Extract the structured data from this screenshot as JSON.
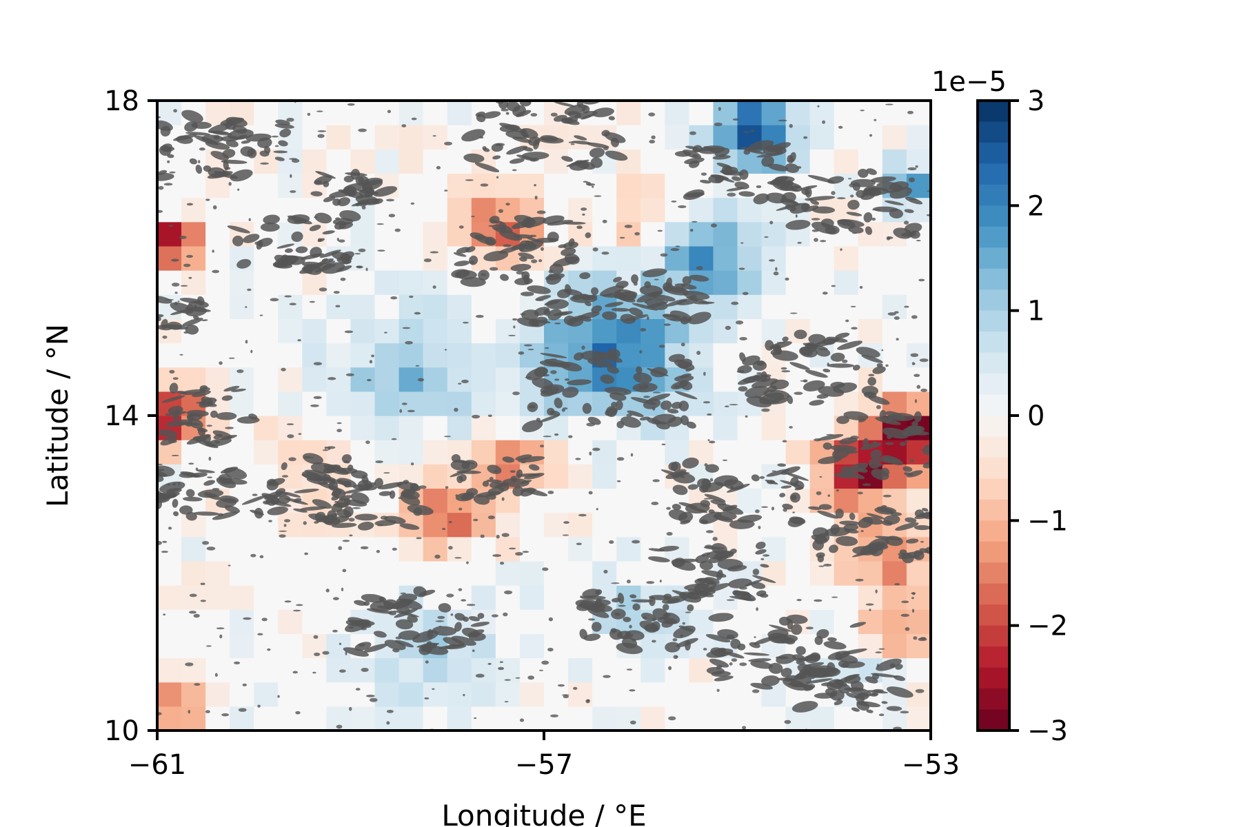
{
  "chart_data": {
    "type": "heatmap",
    "title": "",
    "xlabel": "Longitude / °E",
    "ylabel": "Latitude / °N",
    "xlim": [
      -61,
      -53
    ],
    "ylim": [
      10,
      18
    ],
    "x_ticks": [
      "−61",
      "−57",
      "−53"
    ],
    "y_ticks": [
      "10",
      "14",
      "18"
    ],
    "grid": false,
    "colormap": "RdBu",
    "colormap_stops": [
      "#67001f",
      "#b2182b",
      "#d6604d",
      "#f4a582",
      "#fddbc7",
      "#f7f7f7",
      "#d1e5f0",
      "#92c5de",
      "#4393c3",
      "#2166ac",
      "#053061"
    ],
    "overlay_color": "#555555",
    "colorbar": {
      "offset_text": "1e−5",
      "range": [
        -3,
        3
      ],
      "tick_values": [
        3,
        2,
        1,
        0,
        -1,
        -2,
        -3
      ],
      "tick_labels": [
        "3",
        "2",
        "1",
        "0",
        "−1",
        "−2",
        "−3"
      ]
    },
    "grid_spec": {
      "nx": 32,
      "ny": 26,
      "cell_deg_lon": 0.25,
      "cell_deg_lat": 0.3077,
      "unit_note": "values in units of 1e-5",
      "anomalies": [
        {
          "lon": -60.8,
          "lat": 16.2,
          "value": -3.0,
          "radius": 0.25
        },
        {
          "lon": -60.85,
          "lat": 14.0,
          "value": -2.5,
          "radius": 0.35
        },
        {
          "lon": -60.8,
          "lat": 10.3,
          "value": -1.6,
          "radius": 0.3
        },
        {
          "lon": -58.4,
          "lat": 14.5,
          "value": 1.2,
          "radius": 0.8
        },
        {
          "lon": -58.2,
          "lat": 11.0,
          "value": 0.9,
          "radius": 0.7
        },
        {
          "lon": -58.0,
          "lat": 12.8,
          "value": -1.7,
          "radius": 0.5
        },
        {
          "lon": -57.4,
          "lat": 16.4,
          "value": -1.8,
          "radius": 0.45
        },
        {
          "lon": -57.3,
          "lat": 13.4,
          "value": -1.3,
          "radius": 0.4
        },
        {
          "lon": -56.0,
          "lat": 16.5,
          "value": -1.0,
          "radius": 0.45
        },
        {
          "lon": -56.3,
          "lat": 14.8,
          "value": 2.2,
          "radius": 0.8
        },
        {
          "lon": -56.0,
          "lat": 11.5,
          "value": 0.8,
          "radius": 0.5
        },
        {
          "lon": -54.8,
          "lat": 17.6,
          "value": 2.6,
          "radius": 0.45
        },
        {
          "lon": -55.3,
          "lat": 16.0,
          "value": 1.8,
          "radius": 0.55
        },
        {
          "lon": -53.2,
          "lat": 13.8,
          "value": -3.0,
          "radius": 0.4
        },
        {
          "lon": -53.7,
          "lat": 13.3,
          "value": -2.6,
          "radius": 0.45
        },
        {
          "lon": -53.4,
          "lat": 12.2,
          "value": -1.6,
          "radius": 0.5
        },
        {
          "lon": -53.3,
          "lat": 11.2,
          "value": -1.4,
          "radius": 0.35
        },
        {
          "lon": -53.2,
          "lat": 16.9,
          "value": 1.5,
          "radius": 0.35
        },
        {
          "lon": -53.8,
          "lat": 10.7,
          "value": 0.7,
          "radius": 0.4
        },
        {
          "lon": -59.6,
          "lat": 13.2,
          "value": -0.6,
          "radius": 0.6
        }
      ]
    }
  }
}
